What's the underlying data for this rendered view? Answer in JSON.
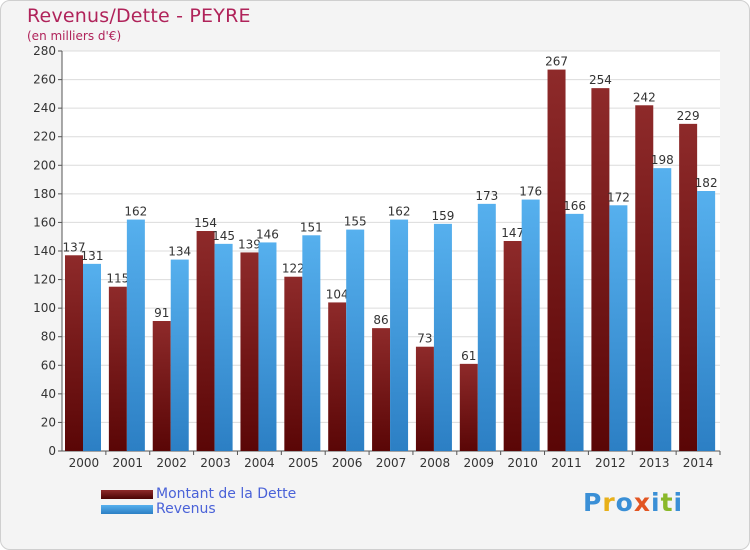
{
  "chart_data": {
    "type": "bar",
    "title": "Revenus/Dette - PEYRE",
    "subtitle": "(en milliers d'€)",
    "categories": [
      "2000",
      "2001",
      "2002",
      "2003",
      "2004",
      "2005",
      "2006",
      "2007",
      "2008",
      "2009",
      "2010",
      "2011",
      "2012",
      "2013",
      "2014"
    ],
    "series": [
      {
        "name": "Montant de la Dette",
        "color": "#7a1414",
        "values": [
          137,
          115,
          91,
          154,
          139,
          122,
          104,
          86,
          73,
          61,
          147,
          267,
          254,
          242,
          229
        ]
      },
      {
        "name": "Revenus",
        "color": "#3a9ae0",
        "values": [
          131,
          162,
          134,
          145,
          146,
          151,
          155,
          162,
          159,
          173,
          176,
          166,
          172,
          198,
          182
        ]
      }
    ],
    "ylim": [
      0,
      280
    ],
    "yticks": [
      0,
      20,
      40,
      60,
      80,
      100,
      120,
      140,
      160,
      180,
      200,
      220,
      240,
      260,
      280
    ],
    "grid": true,
    "legend_position": "bottom-left"
  },
  "brand": {
    "letters": [
      "P",
      "r",
      "o",
      "x",
      "i",
      "t",
      "i"
    ],
    "colors": [
      "#3a8fd6",
      "#e8b01a",
      "#3a8fd6",
      "#e25522",
      "#3a8fd6",
      "#8ab82a",
      "#3a8fd6"
    ]
  }
}
